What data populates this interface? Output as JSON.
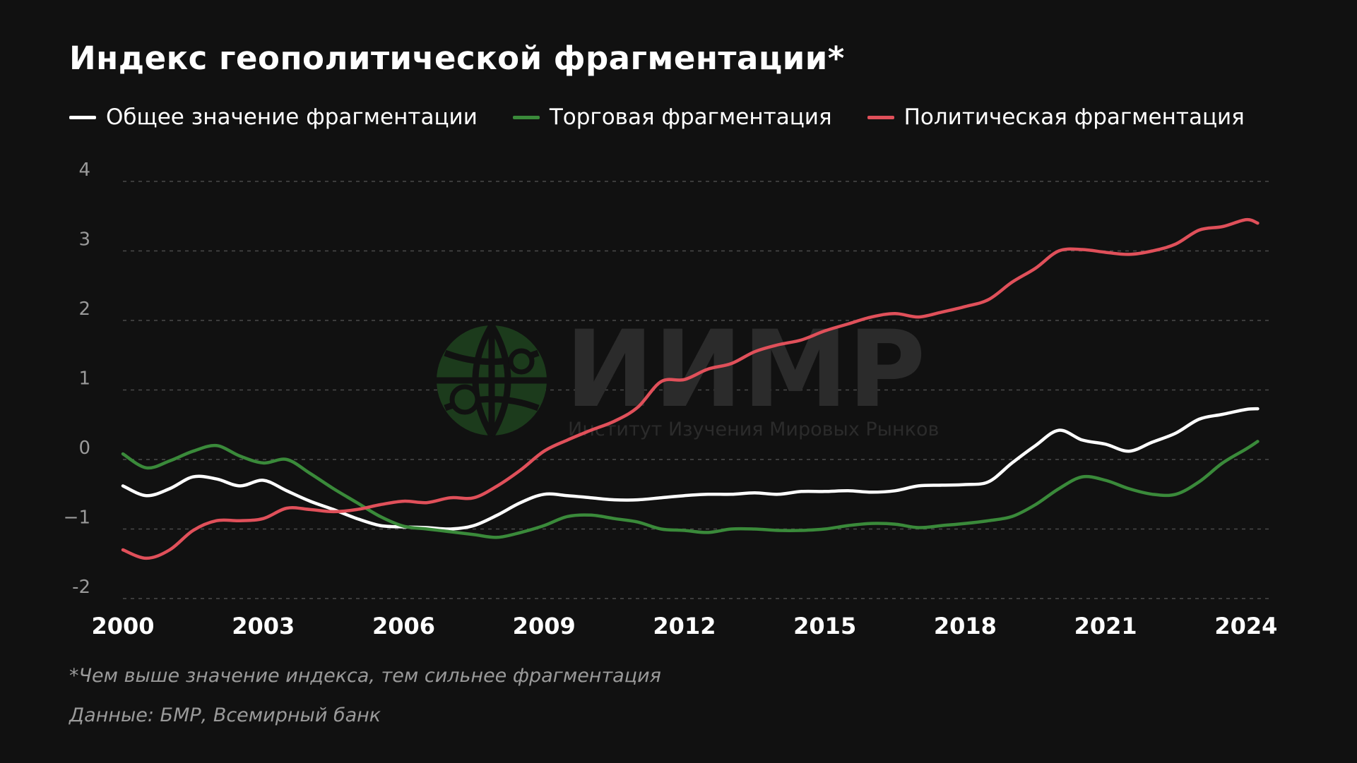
{
  "title": "Индекс геополитической фрагментации*",
  "watermark": {
    "logo_text": "ИИМР",
    "subtitle": "Институт Изучения Мировых Рынков"
  },
  "footnote": "*Чем выше значение индекса, тем сильнее фрагментация",
  "source": "Данные: БМР, Всемирный банк",
  "colors": {
    "background": "#111111",
    "overall": "#ffffff",
    "trade": "#3a8a3a",
    "political": "#e0505a",
    "grid": "#4a4a4a"
  },
  "chart_data": {
    "type": "line",
    "title": "Индекс геополитической фрагментации*",
    "xlabel": "",
    "ylabel": "",
    "xlim": [
      2000,
      2024.5
    ],
    "ylim": [
      -2,
      4
    ],
    "x_ticks": [
      "2000",
      "2003",
      "2006",
      "2009",
      "2012",
      "2015",
      "2018",
      "2021",
      "2024"
    ],
    "y_ticks": [
      "4",
      "3",
      "2",
      "1",
      "0",
      "−1",
      "-2"
    ],
    "grid": true,
    "legend_position": "top",
    "x": [
      2000.0,
      2000.5,
      2001.0,
      2001.5,
      2002.0,
      2002.5,
      2003.0,
      2003.5,
      2004.0,
      2004.5,
      2005.0,
      2005.5,
      2006.0,
      2006.5,
      2007.0,
      2007.5,
      2008.0,
      2008.5,
      2009.0,
      2009.5,
      2010.0,
      2010.5,
      2011.0,
      2011.5,
      2012.0,
      2012.5,
      2013.0,
      2013.5,
      2014.0,
      2014.5,
      2015.0,
      2015.5,
      2016.0,
      2016.5,
      2017.0,
      2017.5,
      2018.0,
      2018.5,
      2019.0,
      2019.5,
      2020.0,
      2020.5,
      2021.0,
      2021.5,
      2022.0,
      2022.5,
      2023.0,
      2023.5,
      2024.0,
      2024.25
    ],
    "series": [
      {
        "name": "Общее значение фрагментации",
        "color": "#ffffff",
        "values": [
          -0.38,
          -0.52,
          -0.42,
          -0.25,
          -0.28,
          -0.38,
          -0.3,
          -0.45,
          -0.6,
          -0.72,
          -0.85,
          -0.95,
          -0.97,
          -0.98,
          -1.0,
          -0.95,
          -0.8,
          -0.62,
          -0.5,
          -0.52,
          -0.55,
          -0.58,
          -0.58,
          -0.55,
          -0.52,
          -0.5,
          -0.5,
          -0.48,
          -0.5,
          -0.46,
          -0.46,
          -0.45,
          -0.47,
          -0.45,
          -0.38,
          -0.37,
          -0.36,
          -0.32,
          -0.05,
          0.2,
          0.42,
          0.28,
          0.22,
          0.12,
          0.25,
          0.38,
          0.58,
          0.65,
          0.72,
          0.73
        ]
      },
      {
        "name": "Торговая фрагментация",
        "color": "#3a8a3a",
        "values": [
          0.08,
          -0.12,
          -0.02,
          0.12,
          0.2,
          0.05,
          -0.05,
          0.0,
          -0.2,
          -0.42,
          -0.62,
          -0.82,
          -0.96,
          -1.0,
          -1.04,
          -1.08,
          -1.12,
          -1.05,
          -0.95,
          -0.82,
          -0.8,
          -0.85,
          -0.9,
          -1.0,
          -1.02,
          -1.05,
          -1.0,
          -1.0,
          -1.02,
          -1.02,
          -1.0,
          -0.95,
          -0.92,
          -0.93,
          -0.98,
          -0.95,
          -0.92,
          -0.88,
          -0.82,
          -0.65,
          -0.42,
          -0.25,
          -0.3,
          -0.42,
          -0.5,
          -0.5,
          -0.32,
          -0.05,
          0.15,
          0.26
        ]
      },
      {
        "name": "Политическая фрагментация",
        "color": "#e0505a",
        "values": [
          -1.3,
          -1.42,
          -1.3,
          -1.02,
          -0.88,
          -0.88,
          -0.85,
          -0.7,
          -0.72,
          -0.75,
          -0.72,
          -0.65,
          -0.6,
          -0.62,
          -0.55,
          -0.55,
          -0.38,
          -0.15,
          0.12,
          0.28,
          0.42,
          0.55,
          0.75,
          1.12,
          1.15,
          1.3,
          1.38,
          1.55,
          1.65,
          1.72,
          1.85,
          1.95,
          2.05,
          2.1,
          2.05,
          2.12,
          2.2,
          2.3,
          2.55,
          2.75,
          3.0,
          3.02,
          2.98,
          2.95,
          3.0,
          3.1,
          3.3,
          3.35,
          3.45,
          3.4
        ]
      }
    ]
  }
}
